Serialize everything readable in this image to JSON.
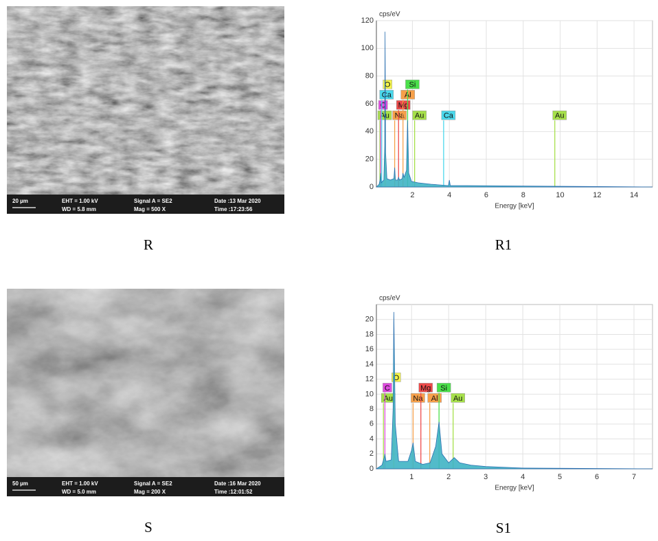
{
  "sem_images": [
    {
      "caption": "R",
      "scale": "20 µm",
      "eht": "EHT =  1.00 kV",
      "wd": "WD =  5.8 mm",
      "signal": "Signal A = SE2",
      "mag": "Mag =   500 X",
      "date": "Date :13 Mar 2020",
      "time": "Time :17:23:56"
    },
    {
      "caption": "S",
      "scale": "50 µm",
      "eht": "EHT =  1.00 kV",
      "wd": "WD =  5.0 mm",
      "signal": "Signal A = SE2",
      "mag": "Mag =   200 X",
      "date": "Date :16 Mar 2020",
      "time": "Time :12:01:52"
    }
  ],
  "chart_data": [
    {
      "type": "spectrum",
      "caption": "R1",
      "ylabel": "cps/eV",
      "xlabel": "Energy [keV]",
      "xlim": [
        0.05,
        15
      ],
      "xticks": [
        2,
        4,
        6,
        8,
        10,
        12,
        14
      ],
      "ylim": [
        0,
        120
      ],
      "yticks": [
        0,
        20,
        40,
        60,
        80,
        100,
        120
      ],
      "grid": true,
      "spectrum": {
        "color": "#3fb4c4",
        "x": [
          0.05,
          0.2,
          0.26,
          0.28,
          0.31,
          0.45,
          0.5,
          0.52,
          0.55,
          0.62,
          0.8,
          1.0,
          1.04,
          1.08,
          1.2,
          1.25,
          1.3,
          1.45,
          1.49,
          1.55,
          1.68,
          1.74,
          1.8,
          1.95,
          2.3,
          3.0,
          3.95,
          4.0,
          4.05,
          5.0,
          15
        ],
        "values": [
          0,
          2,
          6,
          10,
          3,
          5,
          30,
          112,
          25,
          6,
          5,
          6,
          14,
          5,
          5,
          7,
          5,
          6,
          10,
          7,
          12,
          48,
          10,
          4,
          3,
          2,
          1,
          5,
          1,
          1,
          0
        ]
      },
      "elements": [
        {
          "label": "Au",
          "energy": 0.24,
          "color": "#a6e04a"
        },
        {
          "label": "C",
          "energy": 0.28,
          "color": "#e04ae0"
        },
        {
          "label": "Ca",
          "energy": 0.34,
          "color": "#4ad8ec"
        },
        {
          "label": "O",
          "energy": 0.52,
          "color": "#f4f44a"
        },
        {
          "label": "Na",
          "energy": 1.04,
          "color": "#f7a04a"
        },
        {
          "label": "Mg",
          "energy": 1.25,
          "color": "#ee4a4a"
        },
        {
          "label": "Al",
          "energy": 1.49,
          "color": "#f7a04a"
        },
        {
          "label": "Si",
          "energy": 1.74,
          "color": "#4ae04a"
        },
        {
          "label": "Au",
          "energy": 2.12,
          "color": "#a6e04a"
        },
        {
          "label": "Ca",
          "energy": 3.69,
          "color": "#4ad8ec"
        },
        {
          "label": "Au",
          "energy": 9.71,
          "color": "#a6e04a"
        }
      ]
    },
    {
      "type": "spectrum",
      "caption": "S1",
      "ylabel": "cps/eV",
      "xlabel": "Energy [keV]",
      "xlim": [
        0.05,
        7.5
      ],
      "xticks": [
        1,
        2,
        3,
        4,
        5,
        6,
        7
      ],
      "ylim": [
        0,
        22
      ],
      "yticks": [
        0,
        2,
        4,
        6,
        8,
        10,
        12,
        14,
        16,
        18,
        20
      ],
      "grid": true,
      "spectrum": {
        "color": "#3fb4c4",
        "x": [
          0.05,
          0.2,
          0.26,
          0.28,
          0.31,
          0.45,
          0.5,
          0.52,
          0.56,
          0.65,
          0.9,
          1.0,
          1.04,
          1.1,
          1.3,
          1.5,
          1.65,
          1.74,
          1.82,
          2.0,
          2.15,
          2.3,
          2.6,
          3.0,
          4.0,
          7.5
        ],
        "values": [
          0,
          0.5,
          1.5,
          2,
          1,
          1.2,
          8,
          21,
          6,
          1,
          1,
          2.5,
          3.5,
          1,
          0.6,
          0.8,
          3,
          6.3,
          2,
          0.8,
          1.5,
          0.8,
          0.5,
          0.3,
          0.1,
          0
        ]
      },
      "elements": [
        {
          "label": "Au",
          "energy": 0.24,
          "color": "#a6e04a"
        },
        {
          "label": "C",
          "energy": 0.28,
          "color": "#e04ae0"
        },
        {
          "label": "O",
          "energy": 0.52,
          "color": "#f4f44a"
        },
        {
          "label": "Na",
          "energy": 1.04,
          "color": "#f7a04a"
        },
        {
          "label": "Mg",
          "energy": 1.25,
          "color": "#ee4a4a"
        },
        {
          "label": "Al",
          "energy": 1.49,
          "color": "#f7a04a"
        },
        {
          "label": "Si",
          "energy": 1.74,
          "color": "#4ae04a"
        },
        {
          "label": "Au",
          "energy": 2.12,
          "color": "#a6e04a"
        }
      ]
    }
  ]
}
